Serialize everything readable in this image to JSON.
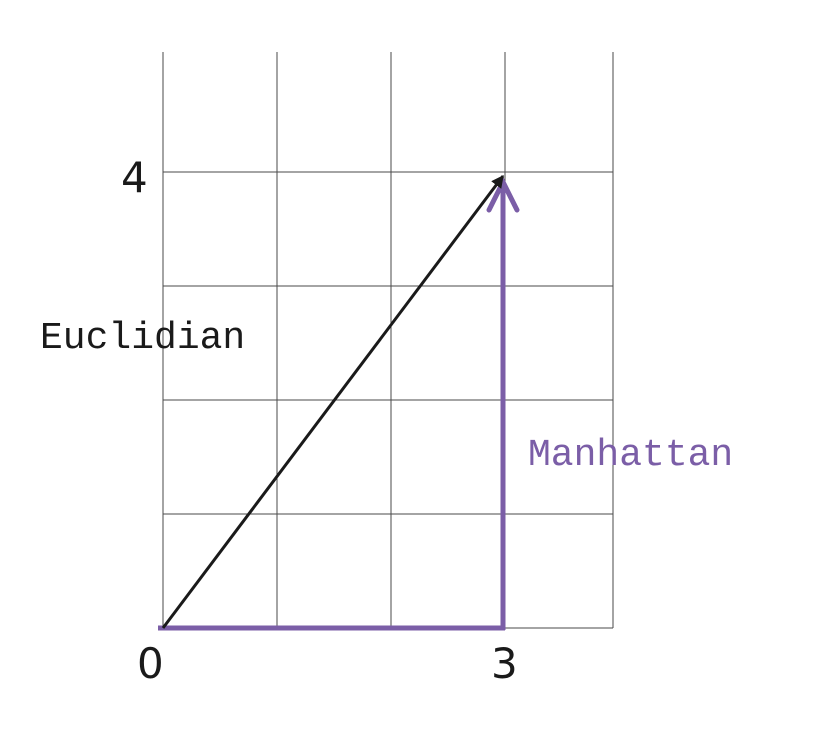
{
  "labels": {
    "x_origin": "0",
    "x_end": "3",
    "y_end": "4",
    "euclidian": "Euclidian",
    "manhattan": "Manhattan"
  },
  "colors": {
    "euclidian": "#1a1a1a",
    "manhattan": "#7b5ea7",
    "grid": "#4a4a4a"
  },
  "grid": {
    "columns": 4,
    "rows": 5
  }
}
